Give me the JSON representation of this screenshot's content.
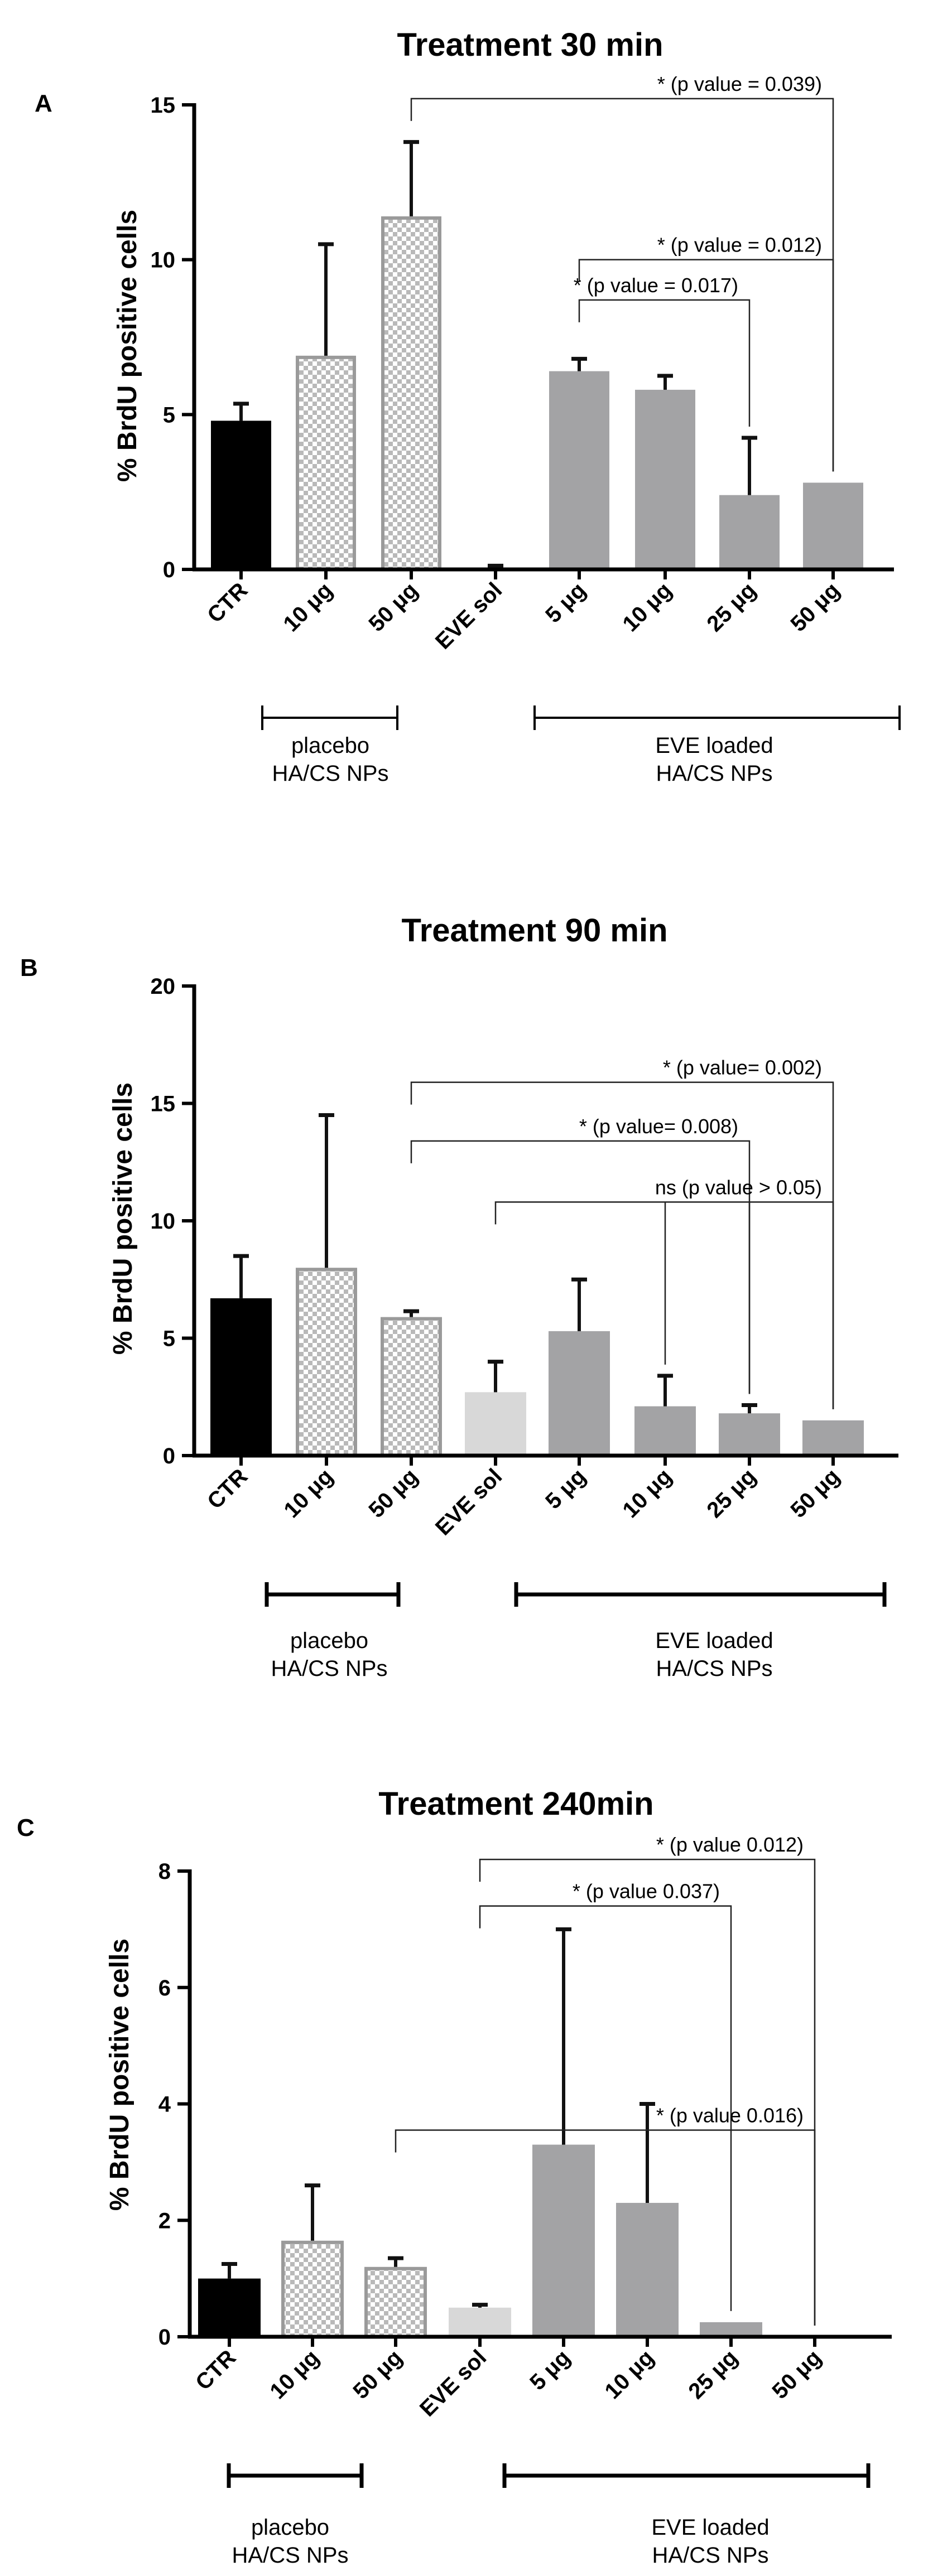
{
  "colors": {
    "ctr": "#000000",
    "placebo_check_light": "#ffffff",
    "placebo_check_dark": "#b9b9b9",
    "placebo_border": "#9a9a9a",
    "eve_sol_A": "#e0e0e0",
    "eve_sol": "#d8d8d8",
    "eve_loaded": "#a3a3a5",
    "error_bar": "#111111"
  },
  "chart_data": [
    {
      "panel": "A",
      "type": "bar",
      "title": "Treatment 30 min",
      "ylabel": "% BrdU  positive cells",
      "xlabel": "",
      "ylim": [
        0,
        15
      ],
      "yticks": [
        0,
        5,
        10,
        15
      ],
      "categories": [
        "CTR",
        "10 μg",
        "50 μg",
        "EVE sol",
        "5 μg",
        "10 μg",
        "25 μg",
        "50 μg"
      ],
      "values": [
        4.8,
        6.9,
        11.4,
        0.05,
        6.4,
        5.8,
        2.4,
        2.8
      ],
      "errors": [
        0.55,
        3.6,
        2.4,
        0.07,
        0.4,
        0.45,
        1.85,
        0.0
      ],
      "groups": [
        {
          "label_lines": [
            "placebo",
            "HA/CS NPs"
          ],
          "from": 1,
          "to": 2
        },
        {
          "label_lines": [
            "EVE loaded",
            "HA/CS NPs"
          ],
          "from": 4,
          "to": 7
        }
      ],
      "comparisons": [
        {
          "from": 2,
          "to": 7,
          "y": 15.2,
          "label": "*   (p value = 0.039)"
        },
        {
          "from": 4,
          "to": 7,
          "y": 10.0,
          "label": "* (p value = 0.012)"
        },
        {
          "from": 4,
          "to": 6,
          "y": 8.7,
          "label": "* (p value = 0.017)"
        }
      ]
    },
    {
      "panel": "B",
      "type": "bar",
      "title": "Treatment 90 min",
      "ylabel": "% BrdU positive cells",
      "xlabel": "",
      "ylim": [
        0,
        20
      ],
      "yticks": [
        0,
        5,
        10,
        15,
        20
      ],
      "categories": [
        "CTR",
        "10 μg",
        "50 μg",
        "EVE sol",
        "5 μg",
        "10 μg",
        "25 μg",
        "50 μg"
      ],
      "values": [
        6.7,
        8.0,
        5.9,
        2.7,
        5.3,
        2.1,
        1.8,
        1.5
      ],
      "errors": [
        1.8,
        6.5,
        0.25,
        1.3,
        2.2,
        1.3,
        0.35,
        0.0
      ],
      "groups": [
        {
          "label_lines": [
            "placebo",
            "HA/CS NPs"
          ],
          "from": 1,
          "to": 2
        },
        {
          "label_lines": [
            "EVE loaded",
            "HA/CS NPs"
          ],
          "from": 3,
          "to": 7
        }
      ],
      "comparisons": [
        {
          "from": 2,
          "to": 7,
          "y": 15.9,
          "label": "*  (p value= 0.002)"
        },
        {
          "from": 2,
          "to": 6,
          "y": 13.4,
          "label": "*  (p value= 0.008)"
        },
        {
          "from": 3,
          "to": 7,
          "y": 10.8,
          "label": "ns (p value > 0.05)",
          "extra_ticks": [
            5,
            6
          ]
        }
      ]
    },
    {
      "panel": "C",
      "type": "bar",
      "title": "Treatment 240min",
      "ylabel": "% BrdU  positive cells",
      "xlabel": "",
      "ylim": [
        0,
        8
      ],
      "yticks": [
        0,
        2,
        4,
        6,
        8
      ],
      "categories": [
        "CTR",
        "10 μg",
        "50 μg",
        "EVE sol",
        "5 μg",
        "10 μg",
        "25 μg",
        "50 μg"
      ],
      "values": [
        1.0,
        1.65,
        1.2,
        0.5,
        3.3,
        2.3,
        0.25,
        0.0
      ],
      "errors": [
        0.25,
        0.95,
        0.15,
        0.05,
        3.7,
        1.7,
        0.0,
        0.0
      ],
      "groups": [
        {
          "label_lines": [
            "placebo",
            "HA/CS NPs"
          ],
          "from": 1,
          "to": 2
        },
        {
          "label_lines": [
            "EVE loaded",
            "HA/CS NPs"
          ],
          "from": 3,
          "to": 7
        }
      ],
      "comparisons": [
        {
          "from": 3,
          "to": 7,
          "y": 8.2,
          "label": "* (p value 0.012)"
        },
        {
          "from": 3,
          "to": 6,
          "y": 7.4,
          "label": "* (p value 0.037)"
        },
        {
          "from": 2,
          "to": 7,
          "y": 3.55,
          "label": "* (p value 0.016)"
        }
      ]
    }
  ]
}
